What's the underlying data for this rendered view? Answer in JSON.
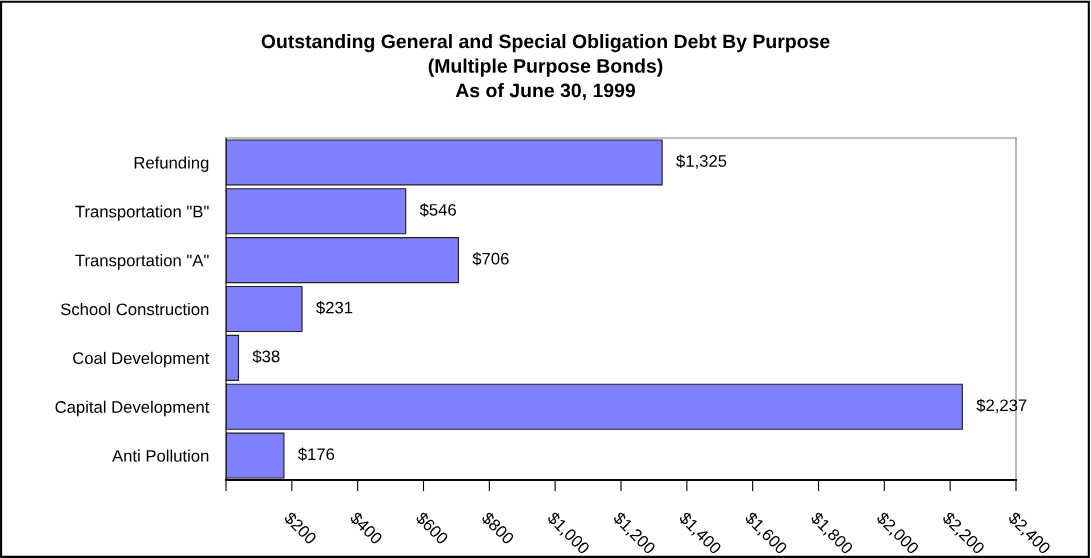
{
  "chart_data": {
    "type": "bar",
    "orientation": "horizontal",
    "title": "Outstanding General and Special Obligation Debt By Purpose\n(Multiple Purpose Bonds)\nAs of June 30, 1999",
    "categories": [
      "Refunding",
      "Transportation \"B\"",
      "Transportation \"A\"",
      "School Construction",
      "Coal Development",
      "Capital Development",
      "Anti Pollution"
    ],
    "values": [
      1325,
      546,
      706,
      231,
      38,
      2237,
      176
    ],
    "value_labels": [
      "$1,325",
      "$546",
      "$706",
      "$231",
      "$38",
      "$2,237",
      "$176"
    ],
    "color": "#8080ff",
    "xlim": [
      0,
      2400
    ],
    "xticks": [
      {
        "value": 0,
        "label": null
      },
      {
        "value": 200,
        "label": "$200"
      },
      {
        "value": 400,
        "label": "$400"
      },
      {
        "value": 600,
        "label": "$600"
      },
      {
        "value": 800,
        "label": "$800"
      },
      {
        "value": 1000,
        "label": "$1,000"
      },
      {
        "value": 1200,
        "label": "$1,200"
      },
      {
        "value": 1400,
        "label": "$1,400"
      },
      {
        "value": 1600,
        "label": "$1,600"
      },
      {
        "value": 1800,
        "label": "$1,800"
      },
      {
        "value": 2000,
        "label": "$2,000"
      },
      {
        "value": 2200,
        "label": "$2,200"
      },
      {
        "value": 2400,
        "label": "$2,400"
      }
    ],
    "grid": false,
    "legend": false
  }
}
